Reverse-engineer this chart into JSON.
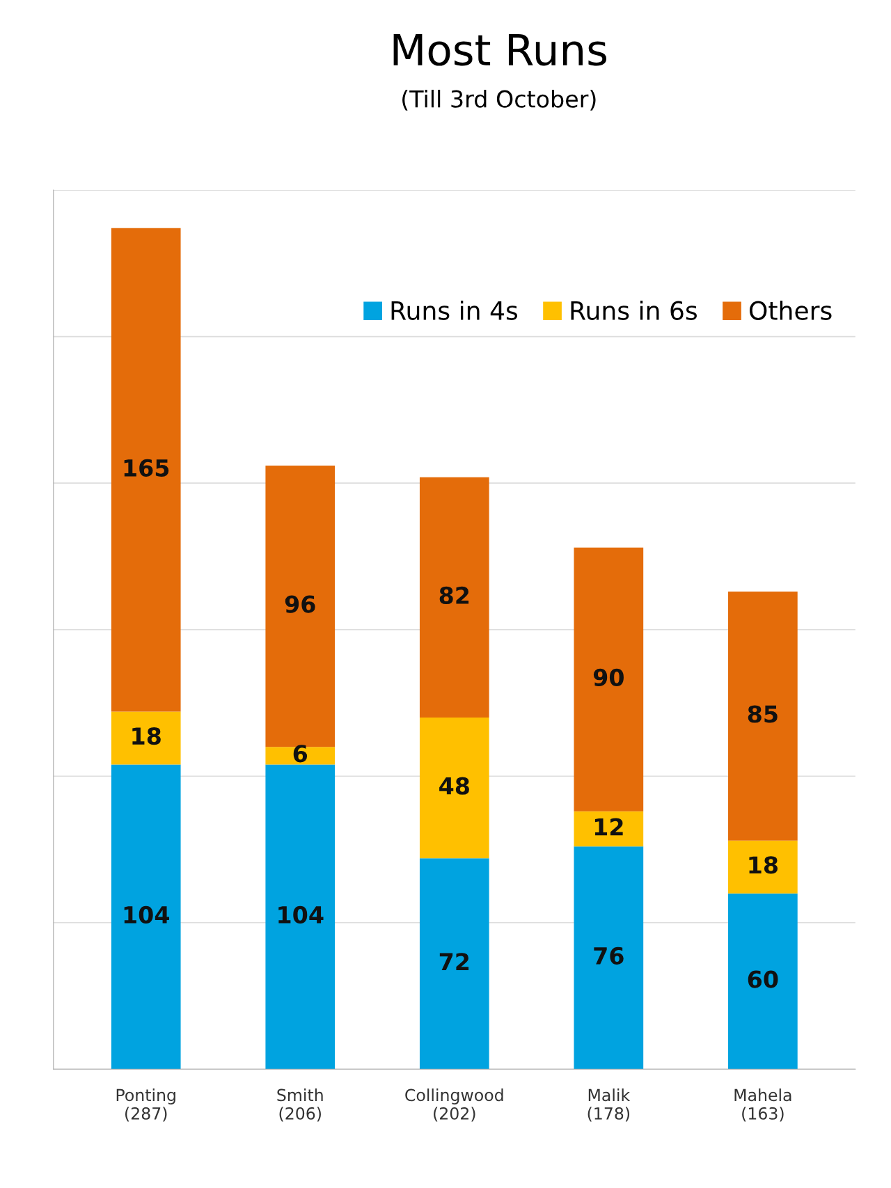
{
  "chart_data": {
    "type": "bar",
    "title": "Most Runs",
    "subtitle": "(Till 3rd October)",
    "categories": [
      "Ponting\n(287)",
      "Smith\n(206)",
      "Collingwood\n(202)",
      "Malik\n(178)",
      "Mahela\n(163)"
    ],
    "series": [
      {
        "name": "Runs in 4s",
        "color": "#00a3e0",
        "values": [
          104,
          104,
          72,
          76,
          60
        ]
      },
      {
        "name": "Runs in 6s",
        "color": "#ffc000",
        "values": [
          18,
          6,
          48,
          12,
          18
        ]
      },
      {
        "name": "Others",
        "color": "#e46c0a",
        "values": [
          165,
          96,
          82,
          90,
          85
        ]
      }
    ],
    "stacked": true,
    "data_labels": true,
    "legend": "top right",
    "grid": "y",
    "tick_labels": "x",
    "ylim": [
      0,
      300
    ],
    "yticks": [
      {
        "value": 0,
        "label": null
      },
      {
        "value": 50,
        "label": null
      },
      {
        "value": 100,
        "label": null
      },
      {
        "value": 150,
        "label": null
      },
      {
        "value": 200,
        "label": null
      },
      {
        "value": 250,
        "label": null
      },
      {
        "value": 300,
        "label": null
      }
    ]
  }
}
